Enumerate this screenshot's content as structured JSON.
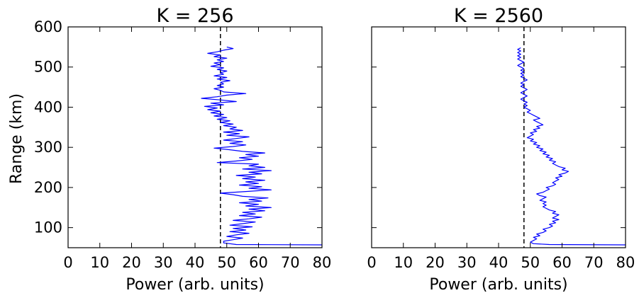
{
  "chart_data": [
    {
      "type": "line",
      "title": "K = 256",
      "xlabel": "Power (arb. units)",
      "ylabel": "Range (km)",
      "xlim": [
        0,
        80
      ],
      "ylim": [
        50,
        600
      ],
      "xticks": [
        "0",
        "10",
        "20",
        "30",
        "40",
        "50",
        "60",
        "70",
        "80"
      ],
      "yticks": [
        "100",
        "200",
        "300",
        "400",
        "500",
        "600"
      ],
      "reference_line": {
        "x": 48,
        "style": "dashed",
        "color": "#000000"
      },
      "series_color": "#0000ff",
      "grid": false,
      "series": [
        {
          "points": [
            [
              80,
              57
            ],
            [
              53,
              58
            ],
            [
              49,
              62
            ],
            [
              49,
              66
            ],
            [
              52,
              70
            ],
            [
              55,
              74
            ],
            [
              50,
              78
            ],
            [
              53,
              82
            ],
            [
              57,
              86
            ],
            [
              51,
              90
            ],
            [
              56,
              94
            ],
            [
              52,
              98
            ],
            [
              58,
              102
            ],
            [
              51,
              106
            ],
            [
              55,
              110
            ],
            [
              59,
              114
            ],
            [
              52,
              118
            ],
            [
              57,
              122
            ],
            [
              61,
              126
            ],
            [
              54,
              130
            ],
            [
              59,
              134
            ],
            [
              55,
              138
            ],
            [
              62,
              142
            ],
            [
              57,
              146
            ],
            [
              64,
              150
            ],
            [
              56,
              154
            ],
            [
              60,
              158
            ],
            [
              54,
              162
            ],
            [
              61,
              166
            ],
            [
              57,
              170
            ],
            [
              63,
              174
            ],
            [
              55,
              178
            ],
            [
              52,
              182
            ],
            [
              48,
              186
            ],
            [
              56,
              190
            ],
            [
              64,
              194
            ],
            [
              57,
              198
            ],
            [
              61,
              202
            ],
            [
              54,
              206
            ],
            [
              60,
              210
            ],
            [
              56,
              214
            ],
            [
              62,
              218
            ],
            [
              55,
              222
            ],
            [
              59,
              226
            ],
            [
              53,
              230
            ],
            [
              61,
              234
            ],
            [
              57,
              238
            ],
            [
              64,
              242
            ],
            [
              55,
              246
            ],
            [
              62,
              250
            ],
            [
              57,
              254
            ],
            [
              60,
              258
            ],
            [
              47,
              262
            ],
            [
              53,
              266
            ],
            [
              58,
              270
            ],
            [
              54,
              274
            ],
            [
              60,
              278
            ],
            [
              56,
              282
            ],
            [
              62,
              286
            ],
            [
              55,
              290
            ],
            [
              51,
              294
            ],
            [
              46,
              298
            ],
            [
              52,
              302
            ],
            [
              56,
              306
            ],
            [
              51,
              310
            ],
            [
              55,
              314
            ],
            [
              49,
              318
            ],
            [
              53,
              322
            ],
            [
              57,
              326
            ],
            [
              50,
              330
            ],
            [
              54,
              334
            ],
            [
              49,
              338
            ],
            [
              55,
              342
            ],
            [
              51,
              346
            ],
            [
              53,
              350
            ],
            [
              49,
              354
            ],
            [
              52,
              358
            ],
            [
              48,
              362
            ],
            [
              51,
              366
            ],
            [
              47,
              370
            ],
            [
              50,
              374
            ],
            [
              46,
              378
            ],
            [
              49,
              382
            ],
            [
              45,
              386
            ],
            [
              48,
              390
            ],
            [
              44,
              394
            ],
            [
              47,
              398
            ],
            [
              43,
              402
            ],
            [
              49,
              406
            ],
            [
              45,
              410
            ],
            [
              53,
              414
            ],
            [
              48,
              418
            ],
            [
              42,
              422
            ],
            [
              47,
              426
            ],
            [
              50,
              430
            ],
            [
              56,
              434
            ],
            [
              49,
              438
            ],
            [
              48,
              442
            ],
            [
              46,
              446
            ],
            [
              49,
              450
            ],
            [
              47,
              454
            ],
            [
              49,
              458
            ],
            [
              48,
              462
            ],
            [
              51,
              466
            ],
            [
              47,
              470
            ],
            [
              50,
              474
            ],
            [
              46,
              478
            ],
            [
              49,
              482
            ],
            [
              48,
              486
            ],
            [
              50,
              490
            ],
            [
              47,
              494
            ],
            [
              49,
              498
            ],
            [
              45,
              502
            ],
            [
              48,
              506
            ],
            [
              46,
              510
            ],
            [
              49,
              514
            ],
            [
              47,
              518
            ],
            [
              50,
              522
            ],
            [
              46,
              526
            ],
            [
              48,
              530
            ],
            [
              44,
              534
            ],
            [
              47,
              538
            ],
            [
              49,
              542
            ],
            [
              52,
              546
            ],
            [
              50,
              550
            ]
          ]
        }
      ]
    },
    {
      "type": "line",
      "title": "K = 2560",
      "xlabel": "Power (arb. units)",
      "ylabel": "",
      "xlim": [
        0,
        80
      ],
      "ylim": [
        50,
        600
      ],
      "xticks": [
        "0",
        "10",
        "20",
        "30",
        "40",
        "50",
        "60",
        "70",
        "80"
      ],
      "yticks": [],
      "reference_line": {
        "x": 48,
        "style": "dashed",
        "color": "#000000"
      },
      "series_color": "#0000ff",
      "grid": false,
      "series": [
        {
          "points": [
            [
              80,
              57
            ],
            [
              56,
              58
            ],
            [
              51,
              60
            ],
            [
              50,
              64
            ],
            [
              51,
              68
            ],
            [
              52,
              72
            ],
            [
              51,
              76
            ],
            [
              53,
              80
            ],
            [
              52,
              84
            ],
            [
              54,
              88
            ],
            [
              55,
              92
            ],
            [
              54,
              96
            ],
            [
              56,
              100
            ],
            [
              57,
              104
            ],
            [
              56,
              108
            ],
            [
              58,
              112
            ],
            [
              57,
              116
            ],
            [
              59,
              120
            ],
            [
              57,
              124
            ],
            [
              58,
              128
            ],
            [
              59,
              132
            ],
            [
              57,
              136
            ],
            [
              58,
              140
            ],
            [
              56,
              144
            ],
            [
              55,
              148
            ],
            [
              54,
              152
            ],
            [
              55,
              156
            ],
            [
              54,
              160
            ],
            [
              55,
              164
            ],
            [
              53,
              168
            ],
            [
              54,
              172
            ],
            [
              55,
              176
            ],
            [
              53,
              180
            ],
            [
              52,
              184
            ],
            [
              54,
              188
            ],
            [
              55,
              192
            ],
            [
              56,
              196
            ],
            [
              55,
              200
            ],
            [
              57,
              204
            ],
            [
              58,
              208
            ],
            [
              57,
              212
            ],
            [
              58,
              216
            ],
            [
              59,
              220
            ],
            [
              58,
              224
            ],
            [
              60,
              228
            ],
            [
              59,
              232
            ],
            [
              61,
              236
            ],
            [
              62,
              240
            ],
            [
              60,
              244
            ],
            [
              61,
              248
            ],
            [
              59,
              252
            ],
            [
              58,
              256
            ],
            [
              57,
              260
            ],
            [
              58,
              264
            ],
            [
              56,
              268
            ],
            [
              57,
              272
            ],
            [
              55,
              276
            ],
            [
              56,
              280
            ],
            [
              54,
              284
            ],
            [
              55,
              288
            ],
            [
              53,
              292
            ],
            [
              54,
              296
            ],
            [
              52,
              300
            ],
            [
              53,
              304
            ],
            [
              51,
              308
            ],
            [
              52,
              312
            ],
            [
              50,
              316
            ],
            [
              51,
              320
            ],
            [
              49,
              324
            ],
            [
              50,
              328
            ],
            [
              51,
              332
            ],
            [
              50,
              336
            ],
            [
              52,
              340
            ],
            [
              51,
              344
            ],
            [
              53,
              348
            ],
            [
              52,
              352
            ],
            [
              54,
              356
            ],
            [
              53,
              360
            ],
            [
              52,
              364
            ],
            [
              51,
              368
            ],
            [
              53,
              372
            ],
            [
              52,
              376
            ],
            [
              51,
              380
            ],
            [
              50,
              384
            ],
            [
              49,
              388
            ],
            [
              50,
              392
            ],
            [
              49,
              396
            ],
            [
              48,
              400
            ],
            [
              49,
              404
            ],
            [
              48,
              408
            ],
            [
              49,
              412
            ],
            [
              48,
              416
            ],
            [
              47,
              420
            ],
            [
              48,
              424
            ],
            [
              49,
              428
            ],
            [
              48,
              432
            ],
            [
              47,
              436
            ],
            [
              48,
              440
            ],
            [
              49,
              444
            ],
            [
              48,
              448
            ],
            [
              47,
              452
            ],
            [
              48,
              456
            ],
            [
              47,
              460
            ],
            [
              48,
              464
            ],
            [
              49,
              468
            ],
            [
              48,
              472
            ],
            [
              47,
              476
            ],
            [
              48,
              480
            ],
            [
              47,
              484
            ],
            [
              48,
              488
            ],
            [
              47,
              492
            ],
            [
              48,
              496
            ],
            [
              47,
              500
            ],
            [
              46,
              504
            ],
            [
              47,
              508
            ],
            [
              48,
              512
            ],
            [
              47,
              516
            ],
            [
              46,
              520
            ],
            [
              47,
              524
            ],
            [
              46,
              528
            ],
            [
              47,
              532
            ],
            [
              46,
              536
            ],
            [
              47,
              540
            ],
            [
              46,
              544
            ],
            [
              47,
              548
            ]
          ]
        }
      ]
    }
  ]
}
